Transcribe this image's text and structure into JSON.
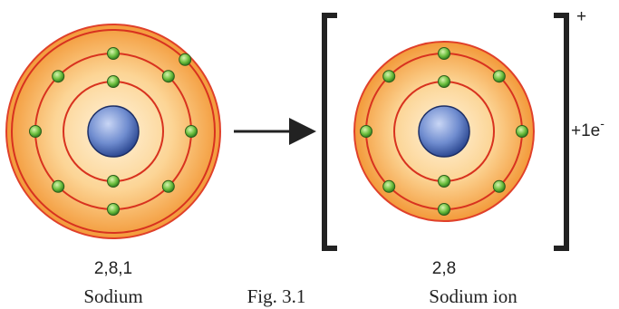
{
  "atom": {
    "configuration": "2,8,1",
    "name": "Sodium"
  },
  "ion": {
    "configuration": "2,8",
    "name": "Sodium ion",
    "charge": "+",
    "electron_label": "+1e",
    "electron_sign": "-"
  },
  "caption": "Fig. 3.1"
}
